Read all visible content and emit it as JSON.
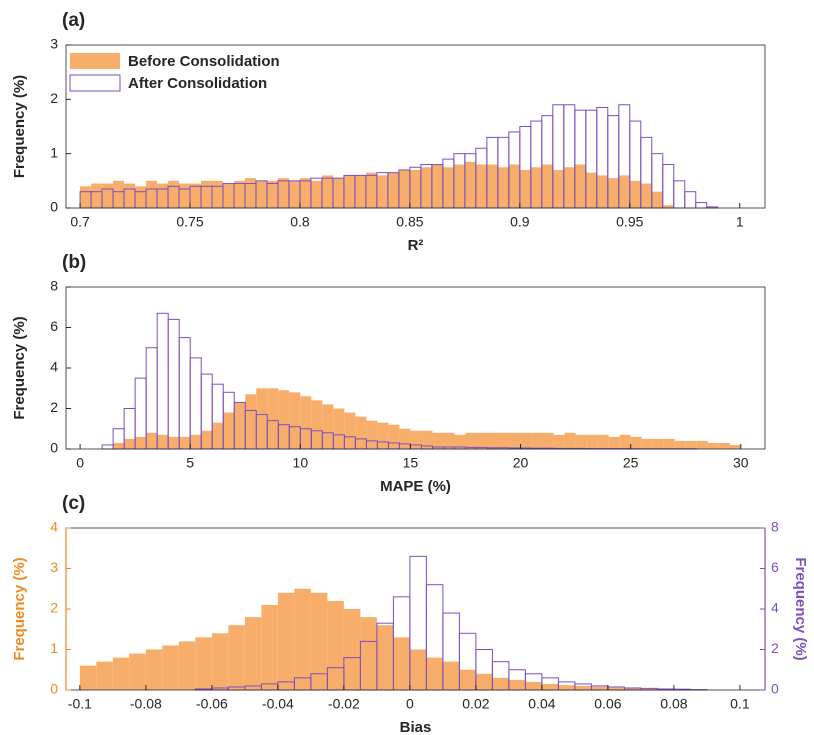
{
  "chart_data": [
    {
      "type": "histogram",
      "title": "(a)",
      "xlabel": "R²",
      "ylabel": "Frequency (%)",
      "xlim": [
        0.6936,
        1.0115
      ],
      "xticks": [
        0.7,
        0.75,
        0.8,
        0.85,
        0.9,
        0.95,
        1
      ],
      "ylim": [
        0,
        3
      ],
      "yticks": [
        0,
        1,
        2,
        3
      ],
      "legend": "upper left",
      "bins": [
        0.7,
        0.705,
        0.71,
        0.715,
        0.72,
        0.725,
        0.73,
        0.735,
        0.74,
        0.745,
        0.75,
        0.755,
        0.76,
        0.765,
        0.77,
        0.775,
        0.78,
        0.785,
        0.79,
        0.795,
        0.8,
        0.805,
        0.81,
        0.815,
        0.82,
        0.825,
        0.83,
        0.835,
        0.84,
        0.845,
        0.85,
        0.855,
        0.86,
        0.865,
        0.87,
        0.875,
        0.88,
        0.885,
        0.89,
        0.895,
        0.9,
        0.905,
        0.91,
        0.915,
        0.92,
        0.925,
        0.93,
        0.935,
        0.94,
        0.945,
        0.95,
        0.955,
        0.96,
        0.965,
        0.97,
        0.975,
        0.98,
        0.985,
        0.99
      ],
      "series": [
        {
          "name": "Before Consolidation",
          "color": "#f7ae6b",
          "fill": true,
          "values": [
            0.4,
            0.45,
            0.45,
            0.5,
            0.45,
            0.4,
            0.5,
            0.45,
            0.5,
            0.45,
            0.45,
            0.5,
            0.5,
            0.45,
            0.5,
            0.55,
            0.5,
            0.5,
            0.55,
            0.5,
            0.55,
            0.5,
            0.6,
            0.55,
            0.6,
            0.6,
            0.65,
            0.6,
            0.65,
            0.7,
            0.7,
            0.75,
            0.8,
            0.75,
            0.8,
            0.85,
            0.8,
            0.8,
            0.75,
            0.8,
            0.7,
            0.75,
            0.8,
            0.7,
            0.75,
            0.8,
            0.65,
            0.6,
            0.55,
            0.6,
            0.5,
            0.45,
            0.3,
            0.05,
            0,
            0,
            0,
            0
          ]
        },
        {
          "name": "After Consolidation",
          "color": "#7e4fbf",
          "fill": false,
          "values": [
            0.3,
            0.3,
            0.35,
            0.3,
            0.35,
            0.3,
            0.35,
            0.35,
            0.4,
            0.35,
            0.4,
            0.4,
            0.4,
            0.45,
            0.45,
            0.45,
            0.5,
            0.45,
            0.5,
            0.5,
            0.5,
            0.55,
            0.55,
            0.55,
            0.6,
            0.6,
            0.6,
            0.65,
            0.65,
            0.7,
            0.75,
            0.8,
            0.8,
            0.9,
            1.0,
            1.0,
            1.1,
            1.3,
            1.3,
            1.4,
            1.5,
            1.6,
            1.7,
            1.9,
            1.9,
            1.8,
            1.8,
            1.85,
            1.7,
            1.9,
            1.6,
            1.3,
            1.0,
            0.8,
            0.5,
            0.3,
            0.1,
            0.02
          ]
        }
      ]
    },
    {
      "type": "histogram",
      "title": "(b)",
      "xlabel": "MAPE (%)",
      "ylabel": "Frequency (%)",
      "xlim": [
        -0.64,
        31.1
      ],
      "xticks": [
        0,
        5,
        10,
        15,
        20,
        25,
        30
      ],
      "ylim": [
        0,
        8
      ],
      "yticks": [
        0,
        2,
        4,
        6,
        8
      ],
      "bins": [
        1,
        1.5,
        2,
        2.5,
        3,
        3.5,
        4,
        4.5,
        5,
        5.5,
        6,
        6.5,
        7,
        7.5,
        8,
        8.5,
        9,
        9.5,
        10,
        10.5,
        11,
        11.5,
        12,
        12.5,
        13,
        13.5,
        14,
        14.5,
        15,
        15.5,
        16,
        16.5,
        17,
        17.5,
        18,
        18.5,
        19,
        19.5,
        20,
        20.5,
        21,
        21.5,
        22,
        22.5,
        23,
        23.5,
        24,
        24.5,
        25,
        25.5,
        26,
        26.5,
        27,
        27.5,
        28,
        28.5,
        29,
        29.5,
        30
      ],
      "series": [
        {
          "color": "#f7ae6b",
          "fill": true,
          "values": [
            0,
            0.3,
            0.5,
            0.6,
            0.8,
            0.7,
            0.6,
            0.6,
            0.7,
            0.9,
            1.3,
            1.8,
            2.3,
            2.7,
            3.0,
            3.0,
            2.9,
            2.8,
            2.6,
            2.4,
            2.2,
            2.0,
            1.8,
            1.6,
            1.4,
            1.3,
            1.2,
            1.0,
            0.9,
            0.9,
            0.8,
            0.8,
            0.7,
            0.8,
            0.8,
            0.8,
            0.8,
            0.8,
            0.8,
            0.8,
            0.8,
            0.7,
            0.8,
            0.7,
            0.7,
            0.7,
            0.6,
            0.7,
            0.6,
            0.5,
            0.5,
            0.5,
            0.4,
            0.4,
            0.4,
            0.3,
            0.3,
            0.2
          ]
        },
        {
          "color": "#7e4fbf",
          "fill": false,
          "values": [
            0.2,
            1.0,
            2.0,
            3.5,
            5.0,
            6.7,
            6.4,
            5.5,
            4.5,
            3.7,
            3.2,
            2.8,
            2.3,
            1.9,
            1.7,
            1.4,
            1.2,
            1.1,
            1.0,
            0.9,
            0.8,
            0.7,
            0.6,
            0.5,
            0.4,
            0.35,
            0.3,
            0.25,
            0.2,
            0.15,
            0.1,
            0.1,
            0.1,
            0.08,
            0.08,
            0.06,
            0.06,
            0.05,
            0.05,
            0.04,
            0.04,
            0.03,
            0.03,
            0.03,
            0.02,
            0.02,
            0.02,
            0.02,
            0.01,
            0.01,
            0.01,
            0.01,
            0.01,
            0.01,
            0,
            0,
            0,
            0
          ]
        }
      ]
    },
    {
      "type": "histogram",
      "title": "(c)",
      "xlabel": "Bias",
      "ylabel": "Frequency (%)",
      "y2label": "Frequency (%)",
      "ycolor": "#f08a24",
      "y2color": "#7e4fbf",
      "xlim": [
        -0.1042,
        0.1076
      ],
      "xticks": [
        -0.1,
        -0.08,
        -0.06,
        -0.04,
        -0.02,
        0,
        0.02,
        0.04,
        0.06,
        0.08,
        0.1
      ],
      "ylim": [
        0,
        4
      ],
      "yticks": [
        0,
        1,
        2,
        3,
        4
      ],
      "y2lim": [
        0,
        8
      ],
      "y2ticks": [
        0,
        2,
        4,
        6,
        8
      ],
      "bins": [
        -0.1,
        -0.095,
        -0.09,
        -0.085,
        -0.08,
        -0.075,
        -0.07,
        -0.065,
        -0.06,
        -0.055,
        -0.05,
        -0.045,
        -0.04,
        -0.035,
        -0.03,
        -0.025,
        -0.02,
        -0.015,
        -0.01,
        -0.005,
        0,
        0.005,
        0.01,
        0.015,
        0.02,
        0.025,
        0.03,
        0.035,
        0.04,
        0.045,
        0.05,
        0.055,
        0.06,
        0.065,
        0.07,
        0.075,
        0.08,
        0.085,
        0.09
      ],
      "series": [
        {
          "color": "#f7ae6b",
          "fill": true,
          "values": [
            0.6,
            0.7,
            0.8,
            0.9,
            1.0,
            1.1,
            1.2,
            1.3,
            1.4,
            1.6,
            1.8,
            2.1,
            2.4,
            2.5,
            2.4,
            2.2,
            2.0,
            1.8,
            1.6,
            1.3,
            1.0,
            0.8,
            0.7,
            0.5,
            0.4,
            0.3,
            0.25,
            0.2,
            0.15,
            0.12,
            0.1,
            0.08,
            0.06,
            0.04,
            0.03,
            0.02,
            0.01,
            0.01
          ]
        },
        {
          "color": "#7e4fbf",
          "fill": false,
          "axis": "y2",
          "values": [
            0,
            0,
            0,
            0,
            0,
            0,
            0,
            0.05,
            0.1,
            0.15,
            0.2,
            0.3,
            0.4,
            0.6,
            0.8,
            1.1,
            1.6,
            2.4,
            3.3,
            4.6,
            6.6,
            5.2,
            3.8,
            2.8,
            2.0,
            1.4,
            1.0,
            0.8,
            0.6,
            0.4,
            0.3,
            0.2,
            0.15,
            0.1,
            0.08,
            0.05,
            0.04,
            0.02
          ]
        }
      ]
    }
  ]
}
